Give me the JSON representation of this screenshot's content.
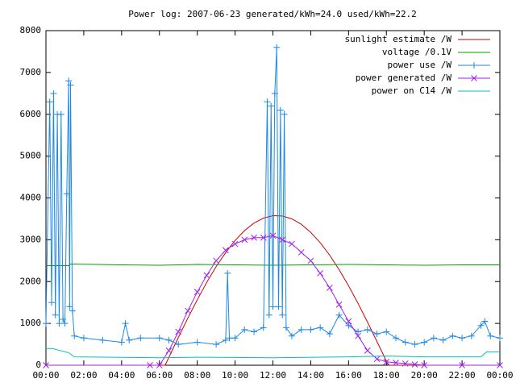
{
  "chart_data": {
    "type": "line",
    "title": "Power log: 2007-06-23 generated/kWh=24.0 used/kWh=22.2",
    "xlim": [
      0,
      24
    ],
    "xticks": [
      {
        "value": 0,
        "label": "00:00"
      },
      {
        "value": 2,
        "label": "02:00"
      },
      {
        "value": 4,
        "label": "04:00"
      },
      {
        "value": 6,
        "label": "06:00"
      },
      {
        "value": 8,
        "label": "08:00"
      },
      {
        "value": 10,
        "label": "10:00"
      },
      {
        "value": 12,
        "label": "12:00"
      },
      {
        "value": 14,
        "label": "14:00"
      },
      {
        "value": 16,
        "label": "16:00"
      },
      {
        "value": 18,
        "label": "18:00"
      },
      {
        "value": 20,
        "label": "20:00"
      },
      {
        "value": 22,
        "label": "22:00"
      },
      {
        "value": 24,
        "label": "00:00"
      }
    ],
    "ylim": [
      0,
      8000
    ],
    "yticks": [
      0,
      1000,
      2000,
      3000,
      4000,
      5000,
      6000,
      7000,
      8000
    ],
    "grid": false,
    "legend": "top-right",
    "series": [
      {
        "name": "sunlight estimate /W",
        "color": "#cc0000",
        "marker": "none",
        "x": [
          0,
          6.3,
          6.5,
          7,
          7.5,
          8,
          8.5,
          9,
          9.5,
          10,
          10.5,
          11,
          11.5,
          12,
          12.5,
          13,
          13.5,
          14,
          14.5,
          15,
          15.5,
          16,
          16.5,
          17,
          17.5,
          18,
          18.1,
          24
        ],
        "values": [
          0,
          0,
          190,
          663,
          1124,
          1565,
          1980,
          2359,
          2693,
          2982,
          3219,
          3399,
          3519,
          3575,
          3569,
          3498,
          3369,
          3176,
          2932,
          2631,
          2284,
          1901,
          1478,
          1031,
          569,
          97,
          0,
          0
        ]
      },
      {
        "name": "voltage /0.1V",
        "color": "#00a000",
        "marker": "none",
        "x": [
          0,
          1.2,
          1.3,
          4,
          6,
          8,
          10,
          12,
          14,
          16,
          18,
          20,
          22,
          24
        ],
        "values": [
          2380,
          2380,
          2420,
          2400,
          2390,
          2410,
          2400,
          2390,
          2400,
          2410,
          2400,
          2390,
          2400,
          2400
        ]
      },
      {
        "name": "power use /W",
        "color": "#1e88e5",
        "marker": "plus",
        "x": [
          0,
          0.2,
          0.3,
          0.4,
          0.5,
          0.6,
          0.7,
          0.8,
          0.9,
          1.0,
          1.1,
          1.2,
          1.25,
          1.3,
          1.4,
          1.5,
          2,
          3,
          4,
          4.2,
          4.4,
          5,
          6,
          6.5,
          7,
          8,
          9,
          9.5,
          9.6,
          9.7,
          10,
          10.5,
          11,
          11.5,
          11.7,
          11.8,
          11.9,
          12,
          12.1,
          12.2,
          12.3,
          12.4,
          12.5,
          12.6,
          12.7,
          13,
          13.5,
          14,
          14.5,
          15,
          15.5,
          16,
          16.5,
          17,
          17.5,
          18,
          18.5,
          19,
          19.5,
          20,
          20.5,
          21,
          21.5,
          22,
          22.5,
          23,
          23.2,
          23.5,
          24
        ],
        "values": [
          1000,
          6300,
          1500,
          6500,
          1200,
          6000,
          1000,
          6000,
          1100,
          1000,
          4100,
          6800,
          1400,
          6700,
          1300,
          700,
          650,
          600,
          550,
          1000,
          600,
          650,
          650,
          600,
          500,
          550,
          500,
          600,
          2200,
          650,
          650,
          850,
          800,
          900,
          6300,
          1200,
          6200,
          1400,
          6500,
          7600,
          1400,
          6100,
          1200,
          6000,
          900,
          700,
          850,
          850,
          900,
          750,
          1200,
          950,
          800,
          850,
          750,
          800,
          650,
          550,
          500,
          550,
          650,
          600,
          700,
          650,
          700,
          950,
          1050,
          700,
          650
        ]
      },
      {
        "name": "power generated /W",
        "color": "#a020f0",
        "marker": "cross",
        "x": [
          0,
          5.5,
          6,
          6.5,
          7,
          7.5,
          8,
          8.5,
          9,
          9.5,
          10,
          10.5,
          11,
          11.5,
          12,
          12.5,
          13,
          13.5,
          14,
          14.5,
          15,
          15.5,
          16,
          16.5,
          17,
          17.5,
          18,
          18.5,
          19,
          19.5,
          20,
          22,
          24
        ],
        "values": [
          0,
          0,
          0,
          350,
          800,
          1300,
          1750,
          2150,
          2500,
          2750,
          2900,
          3000,
          3050,
          3050,
          3100,
          3000,
          2900,
          2700,
          2500,
          2200,
          1850,
          1450,
          1050,
          700,
          350,
          150,
          80,
          60,
          40,
          20,
          0,
          0,
          0
        ]
      },
      {
        "name": "power on C14 /W",
        "color": "#00c0c0",
        "marker": "none",
        "x": [
          0,
          0.4,
          0.5,
          1.2,
          1.5,
          6,
          8,
          12,
          16,
          18,
          20,
          23,
          23.3,
          24
        ],
        "values": [
          400,
          400,
          380,
          300,
          200,
          180,
          190,
          180,
          200,
          220,
          200,
          200,
          320,
          320
        ]
      }
    ]
  }
}
